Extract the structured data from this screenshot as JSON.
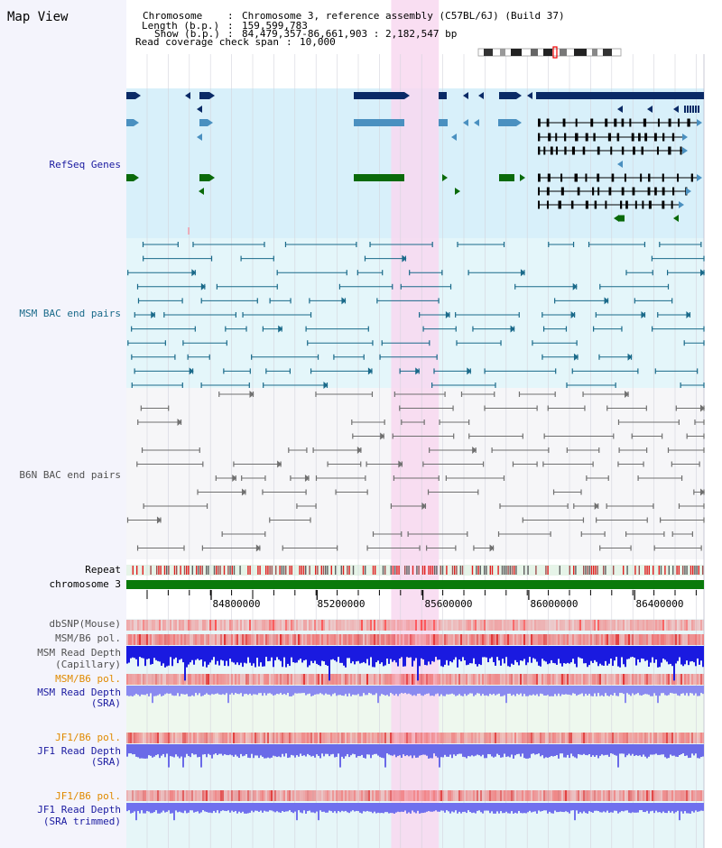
{
  "header": {
    "title": "Map View",
    "info_lines": [
      {
        "key": "Chromosome",
        "sep": " : ",
        "value": "Chromosome 3, reference assembly (C57BL/6J) (Build 37)"
      },
      {
        "key": "Length (b.p.)",
        "sep": " : ",
        "value": "159,599,783"
      },
      {
        "key": "Show (b.p.)",
        "sep": " : ",
        "value": "84,479,357-86,661,903 : 2,182,547 bp"
      },
      {
        "key": "Read coverage check span",
        "sep": " : ",
        "value": "10,000"
      }
    ]
  },
  "tracks": {
    "refseq": {
      "label": "RefSeq Genes"
    },
    "msm_bac": {
      "label": "MSM BAC end pairs"
    },
    "b6n_bac": {
      "label": "B6N BAC end pairs"
    },
    "repeat": {
      "label": "Repeat"
    },
    "chromosome": {
      "label": "chromosome 3"
    },
    "dbsnp": {
      "label": "dbSNP(Mouse)"
    },
    "msm_b6_pol": {
      "label": "MSM/B6 pol."
    },
    "msm_depth_cap": {
      "label_line1": "MSM Read Depth",
      "label_line2": "(Capillary)"
    },
    "msm_b6_pol2": {
      "label": "MSM/B6 pol."
    },
    "msm_depth_sra": {
      "label_line1": "MSM Read Depth",
      "label_line2": "(SRA)"
    },
    "jf1_b6_pol": {
      "label": "JF1/B6 pol."
    },
    "jf1_depth_sra": {
      "label_line1": "JF1 Read Depth",
      "label_line2": "(SRA)"
    },
    "jf1_b6_pol2": {
      "label": "JF1/B6 pol."
    },
    "jf1_depth_trim": {
      "label_line1": "JF1 Read Depth",
      "label_line2": "(SRA trimmed)"
    }
  },
  "ruler": {
    "range_bp": [
      84479357,
      86661903
    ],
    "ticks": [
      {
        "bp": 84800000,
        "label": "84800000"
      },
      {
        "bp": 85200000,
        "label": "85200000"
      },
      {
        "bp": 85600000,
        "label": "85600000"
      },
      {
        "bp": 86000000,
        "label": "86000000"
      },
      {
        "bp": 86400000,
        "label": "86400000"
      }
    ]
  },
  "highlight": {
    "start_bp": 85480000,
    "end_bp": 85660000
  },
  "colors": {
    "refseq_dark": "#0a2a66",
    "refseq_mid": "#4a90c0",
    "refseq_green": "#0a6a0a",
    "msm_bac": "#1a6a8a",
    "b6n_bac": "#707070",
    "chromosome": "#0a7a0a",
    "highlight": "#f8d8f0",
    "label_blue": "#1a1aa0",
    "label_orange": "#e08a00",
    "label_teal": "#1a6a8a",
    "label_gray": "#505050"
  }
}
